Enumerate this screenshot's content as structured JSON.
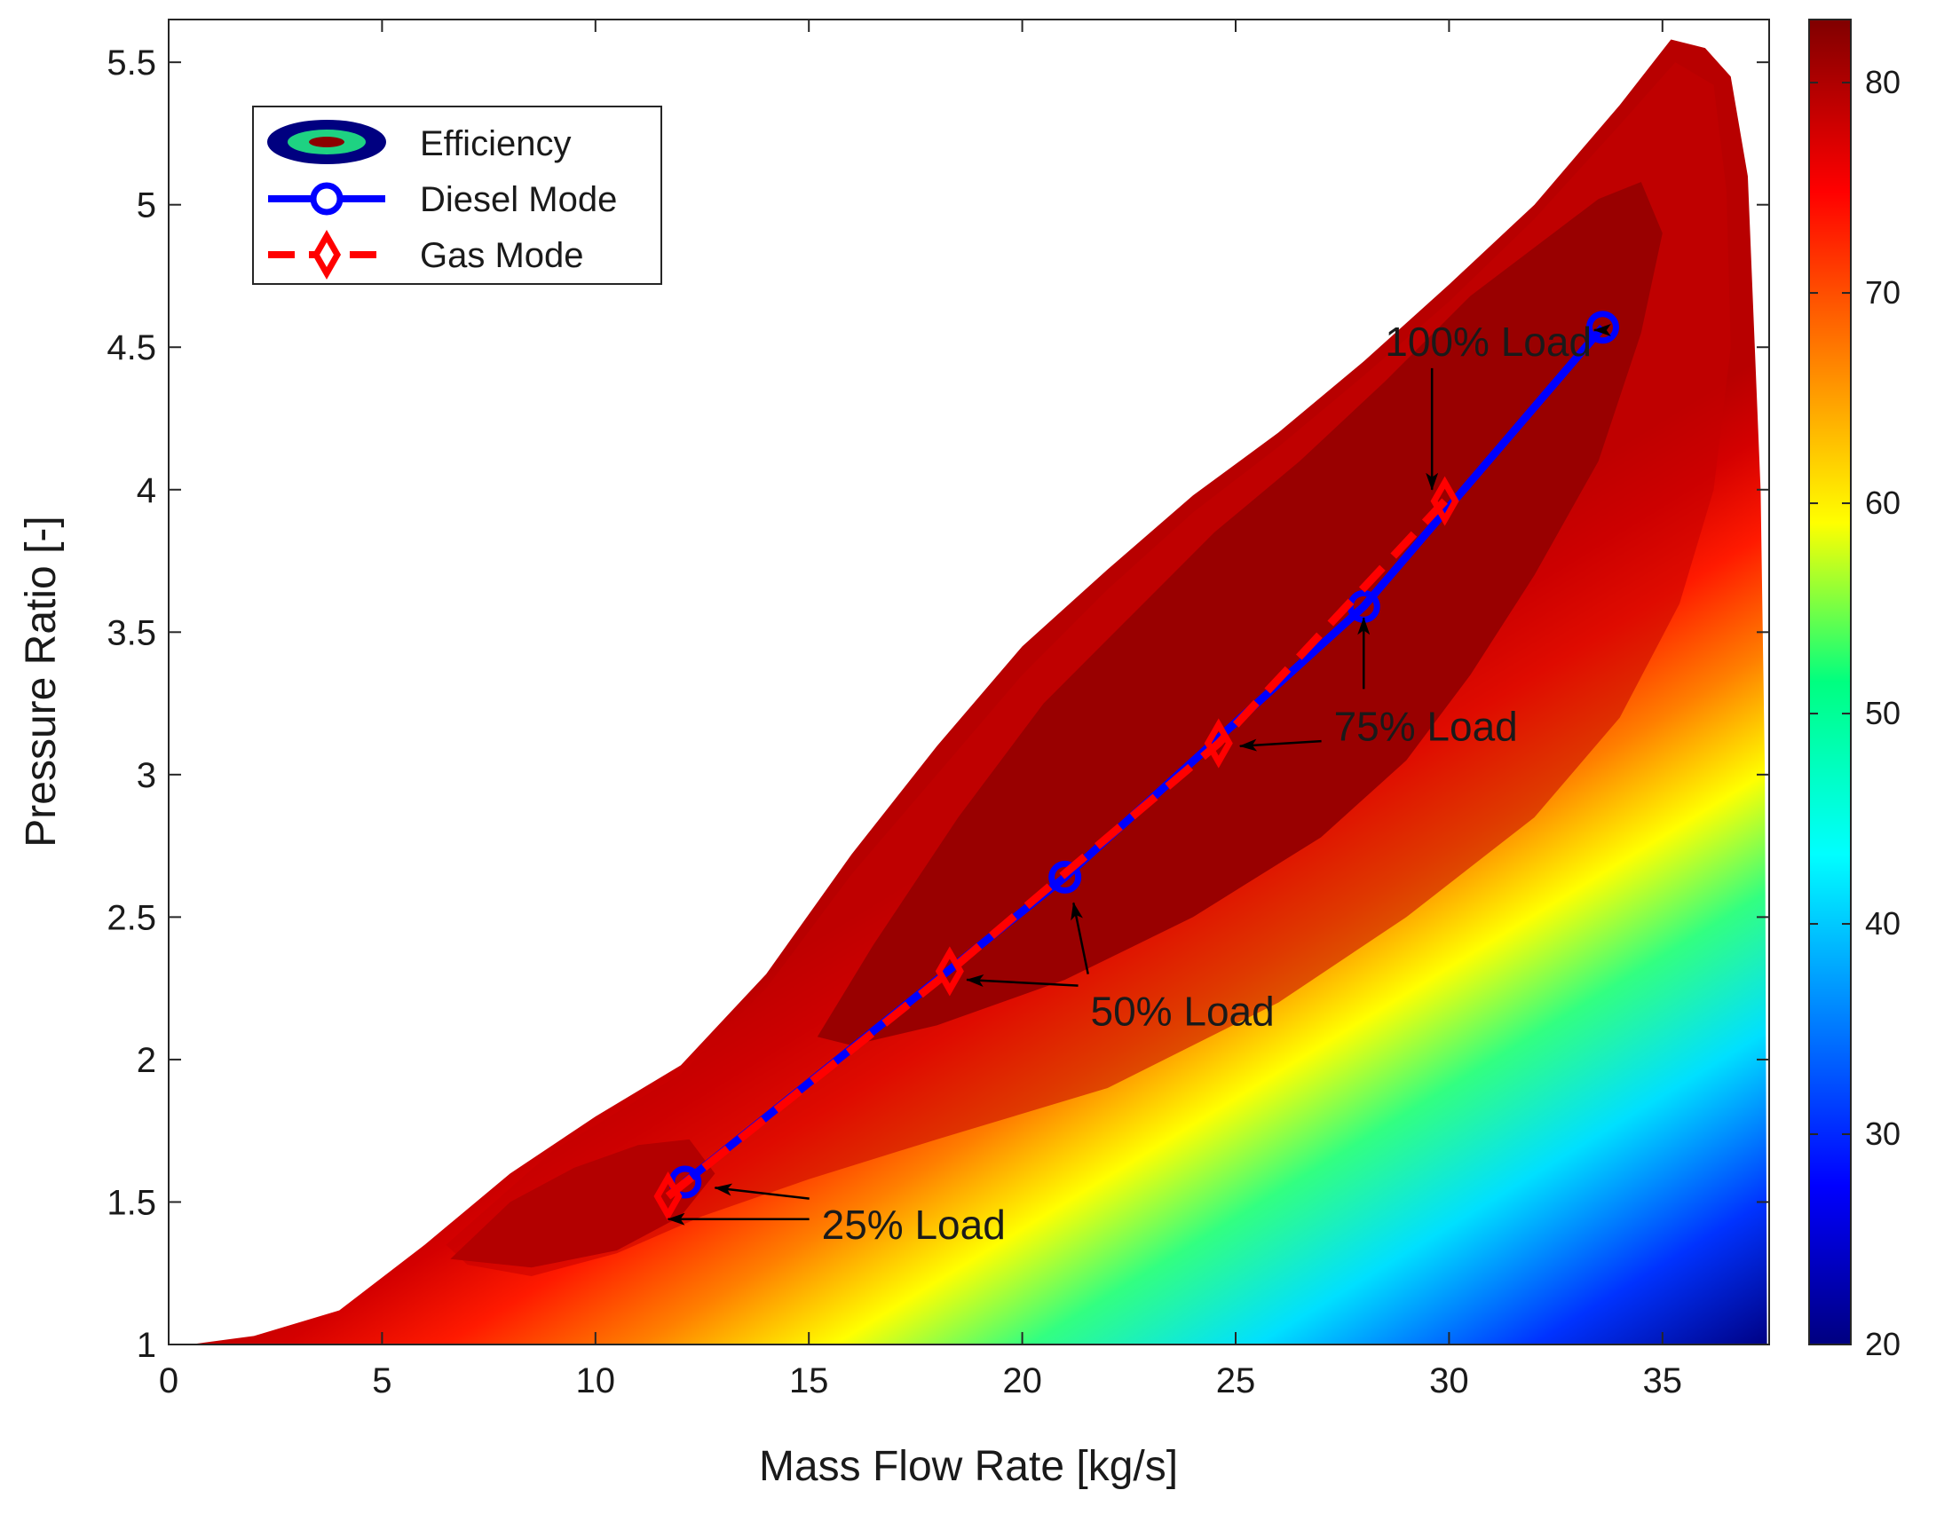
{
  "chart_data": {
    "type": "contour-with-lines",
    "xlabel": "Mass Flow Rate [kg/s]",
    "ylabel": "Pressure Ratio [-]",
    "xlim": [
      0,
      37.5
    ],
    "ylim": [
      1,
      5.65
    ],
    "xticks": [
      0,
      5,
      10,
      15,
      20,
      25,
      30,
      35
    ],
    "yticks": [
      1,
      1.5,
      2,
      2.5,
      3,
      3.5,
      4,
      4.5,
      5,
      5.5
    ],
    "grid": false,
    "colorbar": {
      "colormap": "jet",
      "range": [
        20,
        83
      ],
      "ticks": [
        20,
        30,
        40,
        50,
        60,
        70,
        80
      ]
    },
    "contour": {
      "name": "Efficiency",
      "upper_boundary": [
        [
          0.5,
          1.0
        ],
        [
          2,
          1.03
        ],
        [
          4,
          1.12
        ],
        [
          6,
          1.35
        ],
        [
          8,
          1.6
        ],
        [
          9,
          1.7
        ],
        [
          10,
          1.8
        ],
        [
          12,
          1.98
        ],
        [
          14,
          2.3
        ],
        [
          16,
          2.72
        ],
        [
          18,
          3.1
        ],
        [
          20,
          3.45
        ],
        [
          22,
          3.72
        ],
        [
          24,
          3.98
        ],
        [
          26,
          4.2
        ],
        [
          28,
          4.45
        ],
        [
          30,
          4.72
        ],
        [
          32,
          5.0
        ],
        [
          34,
          5.35
        ],
        [
          35.2,
          5.58
        ],
        [
          36,
          5.55
        ],
        [
          36.6,
          5.45
        ],
        [
          37,
          5.1
        ],
        [
          37.3,
          4.0
        ],
        [
          37.4,
          3.0
        ],
        [
          37.45,
          1.0
        ]
      ],
      "levels_shown": "approx. 20 to 83 %"
    },
    "series": [
      {
        "name": "Diesel Mode",
        "color": "#0000ff",
        "marker": "circle",
        "line_style": "solid",
        "x": [
          12.1,
          21.0,
          28.0,
          33.6
        ],
        "y": [
          1.57,
          2.64,
          3.59,
          4.57
        ]
      },
      {
        "name": "Gas Mode",
        "color": "#ff0000",
        "marker": "diamond",
        "line_style": "dashed",
        "x": [
          11.7,
          18.3,
          24.6,
          29.9
        ],
        "y": [
          1.52,
          2.31,
          3.11,
          3.96
        ]
      }
    ],
    "legend": {
      "position": "top-left",
      "entries": [
        "Efficiency",
        "Diesel Mode",
        "Gas Mode"
      ]
    },
    "annotations": [
      {
        "text": "100% Load",
        "at": [
          28.5,
          4.47
        ],
        "arrows_to": [
          [
            33.4,
            4.56
          ],
          [
            29.6,
            4.0
          ]
        ]
      },
      {
        "text": "75% Load",
        "at": [
          27.3,
          3.12
        ],
        "arrows_to": [
          [
            28.0,
            3.55
          ],
          [
            25.1,
            3.1
          ]
        ]
      },
      {
        "text": "50% Load",
        "at": [
          21.6,
          2.12
        ],
        "arrows_to": [
          [
            21.2,
            2.55
          ],
          [
            18.7,
            2.28
          ]
        ]
      },
      {
        "text": "25% Load",
        "at": [
          15.3,
          1.37
        ],
        "arrows_to": [
          [
            12.8,
            1.55
          ],
          [
            11.7,
            1.44
          ]
        ]
      }
    ]
  }
}
